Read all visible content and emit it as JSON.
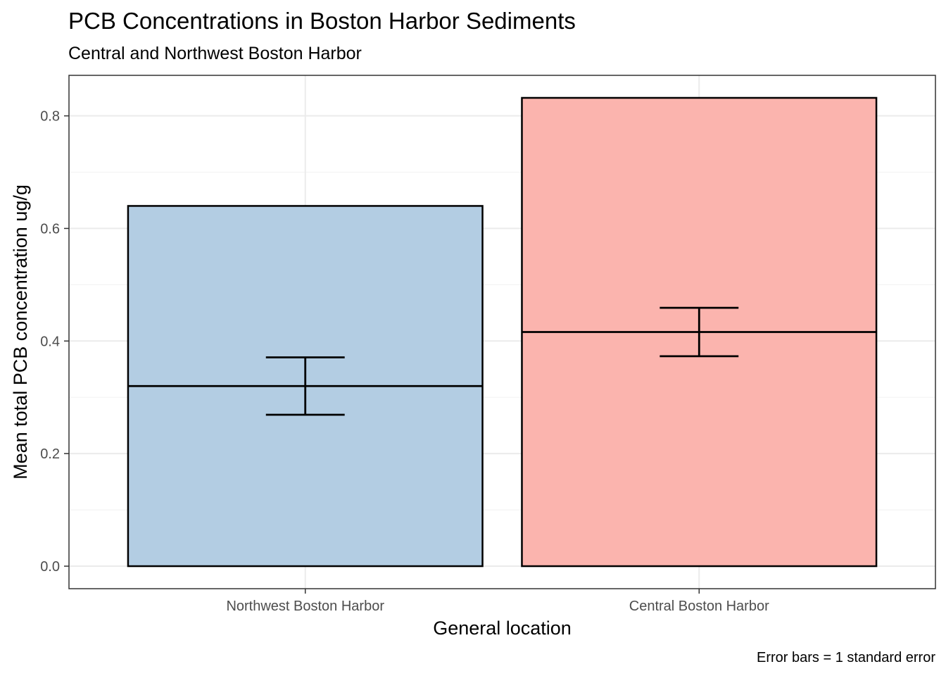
{
  "chart_data": {
    "type": "bar",
    "title": "PCB Concentrations in Boston Harbor Sediments",
    "subtitle": "Central and Northwest Boston Harbor",
    "xlabel": "General location",
    "ylabel": "Mean total PCB concentration ug/g",
    "caption": "Error bars = 1 standard error",
    "categories": [
      "Northwest Boston Harbor",
      "Central Boston Harbor"
    ],
    "values": [
      0.64,
      0.832
    ],
    "means": [
      0.32,
      0.416
    ],
    "error_low": [
      0.269,
      0.373
    ],
    "error_high": [
      0.371,
      0.459
    ],
    "colors": [
      "#b3cde3",
      "#fbb4ae"
    ],
    "ylim": [
      -0.04,
      0.872
    ],
    "yticks": [
      0.0,
      0.2,
      0.4,
      0.6,
      0.8
    ],
    "ytick_labels": [
      "0.0",
      "0.2",
      "0.4",
      "0.6",
      "0.8"
    ],
    "grid": true,
    "legend": "none"
  }
}
